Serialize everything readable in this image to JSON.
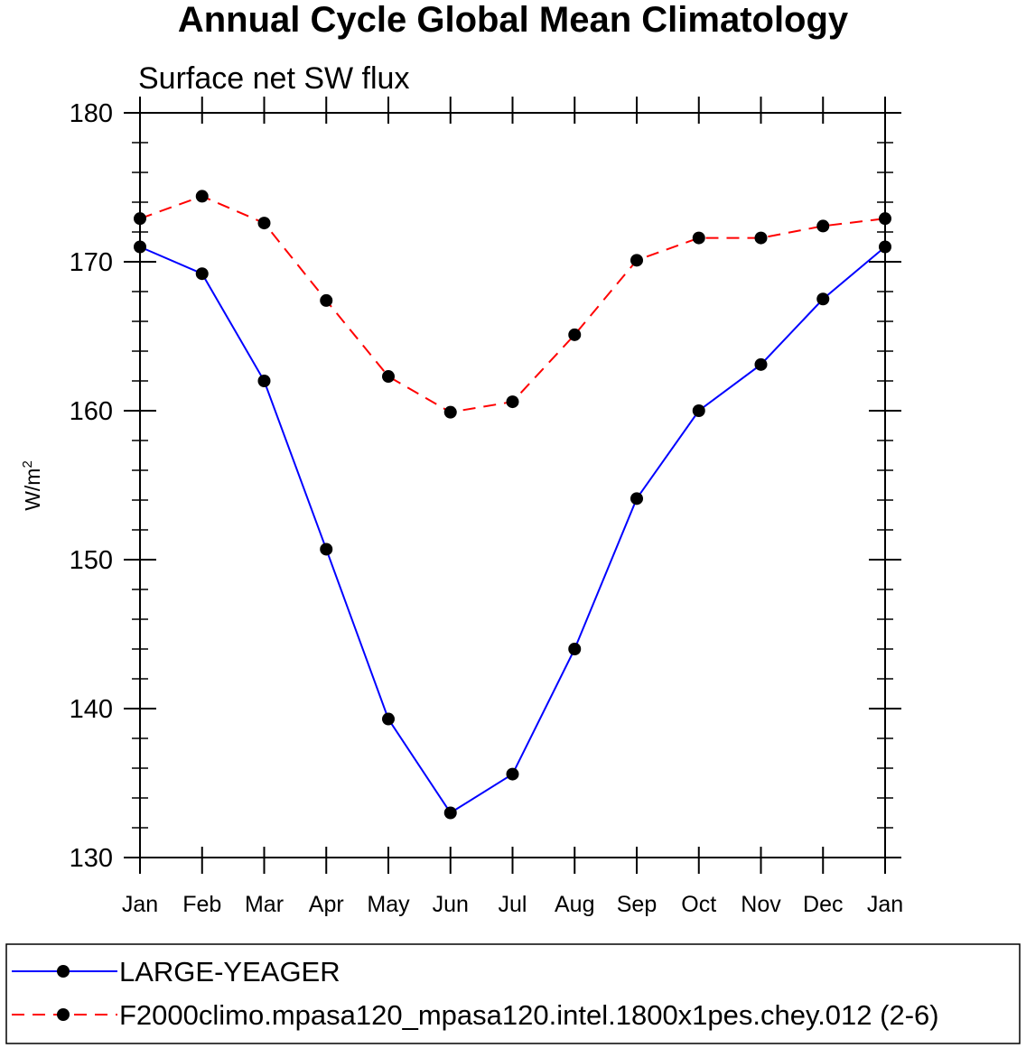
{
  "chart_data": {
    "type": "line",
    "title": "Annual Cycle Global Mean Climatology",
    "subtitle": "Surface net SW flux",
    "xlabel": "",
    "ylabel": "W/m",
    "ylabel_superscript": "2",
    "categories": [
      "Jan",
      "Feb",
      "Mar",
      "Apr",
      "May",
      "Jun",
      "Jul",
      "Aug",
      "Sep",
      "Oct",
      "Nov",
      "Dec",
      "Jan"
    ],
    "ylim": [
      130,
      180
    ],
    "yticks": [
      130,
      140,
      150,
      160,
      170,
      180
    ],
    "series": [
      {
        "name": "LARGE-YEAGER",
        "color": "#0000ff",
        "dash": "solid",
        "marker": "filled-circle",
        "values": [
          171.0,
          169.2,
          162.0,
          150.7,
          139.3,
          133.0,
          135.6,
          144.0,
          154.1,
          160.0,
          163.1,
          167.5,
          171.0
        ]
      },
      {
        "name": "F2000climo.mpasa120_mpasa120.intel.1800x1pes.chey.012 (2-6)",
        "color": "#ff0000",
        "dash": "dashed",
        "marker": "filled-circle",
        "values": [
          172.9,
          174.4,
          172.6,
          167.4,
          162.3,
          159.9,
          160.6,
          165.1,
          170.1,
          171.6,
          171.6,
          172.4,
          172.9
        ]
      }
    ]
  }
}
